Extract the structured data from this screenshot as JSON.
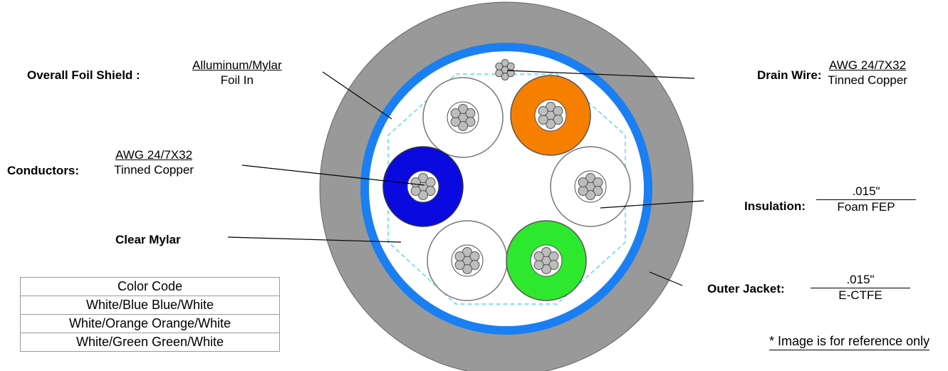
{
  "labels": {
    "overall_foil_shield": "Overall Foil Shield :",
    "drain_wire": "Drain Wire:",
    "conductors": "Conductors:",
    "insulation": "Insulation:",
    "clear_mylar": "Clear Mylar",
    "outer_jacket": "Outer Jacket:"
  },
  "specs": {
    "foil": {
      "top": "Alluminum/Mylar",
      "bottom": "Foil In"
    },
    "drain": {
      "top": "AWG 24/7X32",
      "bottom": "Tinned Copper"
    },
    "conductors": {
      "top": "AWG 24/7X32",
      "bottom": "Tinned Copper"
    },
    "insulation": {
      "top": ".015\"",
      "bottom": "Foam FEP"
    },
    "jacket": {
      "top": ".015\"",
      "bottom": "E-CTFE"
    }
  },
  "color_code": {
    "header": "Color Code",
    "rows": [
      "White/Blue  Blue/White",
      "White/Orange  Orange/White",
      "White/Green Green/White"
    ]
  },
  "note": "* Image is for reference only",
  "colors": {
    "jacket": "#999999",
    "shield": "#1a7ff2",
    "blue_pair": "#0a0ae0",
    "orange_pair": "#f77f00",
    "green_pair": "#2ee82e",
    "mylar_dash": "#5fd7e8"
  }
}
